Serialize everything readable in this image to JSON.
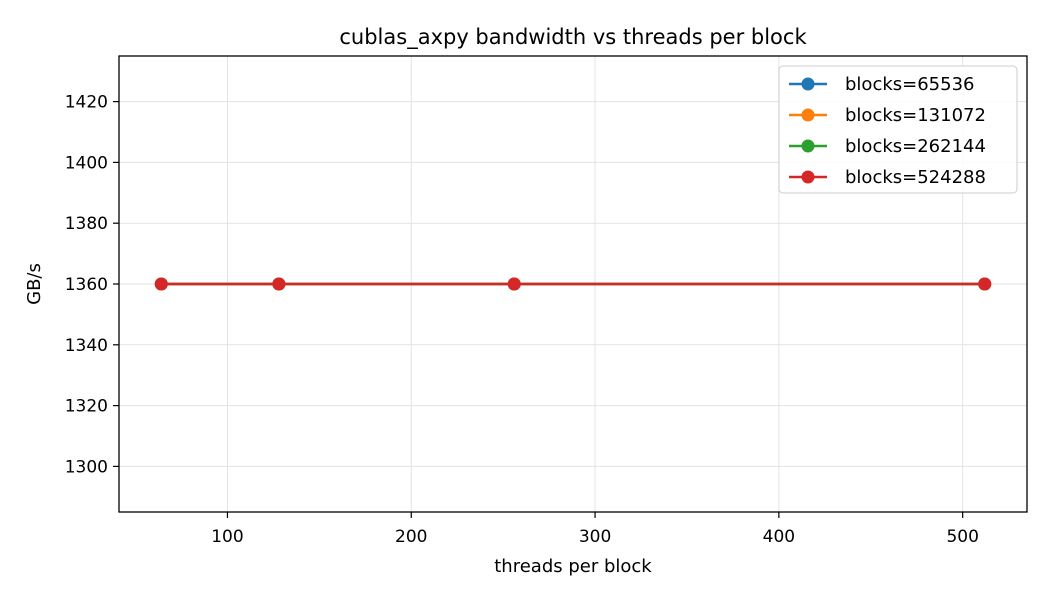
{
  "chart_data": {
    "type": "line",
    "title": "cublas_axpy bandwidth vs threads per block",
    "xlabel": "threads per block",
    "ylabel": "GB/s",
    "xlim": [
      41,
      535
    ],
    "ylim": [
      1285,
      1435
    ],
    "xticks": [
      100,
      200,
      300,
      400,
      500
    ],
    "yticks": [
      1300,
      1320,
      1340,
      1360,
      1380,
      1400,
      1420
    ],
    "grid": true,
    "legend_position": "top-right",
    "x": [
      64,
      128,
      256,
      512
    ],
    "series": [
      {
        "name": "blocks=65536",
        "color": "#1f77b4",
        "values": [
          1360,
          1360,
          1360,
          1360
        ]
      },
      {
        "name": "blocks=131072",
        "color": "#ff7f0e",
        "values": [
          1360,
          1360,
          1360,
          1360
        ]
      },
      {
        "name": "blocks=262144",
        "color": "#2ca02c",
        "values": [
          1360,
          1360,
          1360,
          1360
        ]
      },
      {
        "name": "blocks=524288",
        "color": "#d62728",
        "values": [
          1360,
          1360,
          1360,
          1360
        ]
      }
    ]
  }
}
